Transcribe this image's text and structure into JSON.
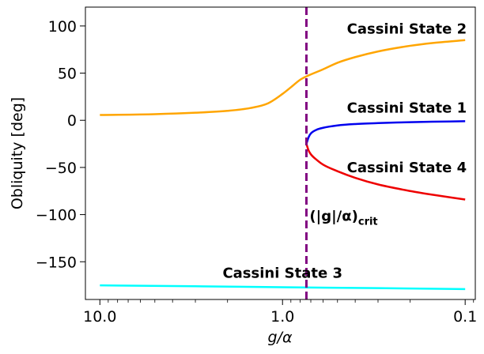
{
  "chart_data": {
    "type": "line",
    "title": "",
    "xlabel": "g/α",
    "ylabel": "Obliquity [deg]",
    "x_scale": "log",
    "x_reversed": true,
    "xlim": [
      12.0,
      0.088
    ],
    "ylim": [
      -190,
      120
    ],
    "x_ticks": [
      {
        "value": 10.0,
        "label": "10.0"
      },
      {
        "value": 1.0,
        "label": "1.0"
      },
      {
        "value": 0.1,
        "label": "0.1"
      }
    ],
    "y_ticks": [
      {
        "value": 100,
        "label": "100"
      },
      {
        "value": 50,
        "label": "50"
      },
      {
        "value": 0,
        "label": "0"
      },
      {
        "value": -50,
        "label": "−50"
      },
      {
        "value": -100,
        "label": "−100"
      },
      {
        "value": -150,
        "label": "−150"
      }
    ],
    "grid": false,
    "series": [
      {
        "color": "#FFA500",
        "x": [
          10,
          5,
          3,
          2,
          1.5,
          1.2,
          1.0,
          0.9,
          0.8,
          0.75,
          0.6,
          0.5,
          0.4,
          0.3,
          0.2,
          0.15,
          0.1
        ],
        "y": [
          5.6,
          6.5,
          8,
          10,
          13,
          18,
          28,
          35,
          43,
          46,
          54,
          61,
          67,
          73,
          79,
          82,
          85
        ]
      },
      {
        "color": "#0000EE",
        "x": [
          0.74,
          0.72,
          0.7,
          0.65,
          0.6,
          0.5,
          0.4,
          0.3,
          0.2,
          0.15,
          0.1
        ],
        "y": [
          -25,
          -18,
          -14,
          -10,
          -8,
          -5.5,
          -4,
          -3,
          -2,
          -1.5,
          -1
        ]
      },
      {
        "color": "#EE0000",
        "x": [
          0.74,
          0.72,
          0.7,
          0.65,
          0.6,
          0.5,
          0.4,
          0.3,
          0.2,
          0.15,
          0.1
        ],
        "y": [
          -25,
          -32,
          -36,
          -42,
          -47,
          -54,
          -61,
          -68,
          -75,
          -79,
          -84
        ]
      },
      {
        "color": "#00FFFF",
        "x": [
          10,
          3,
          1.0,
          0.3,
          0.1
        ],
        "y": [
          -175,
          -176,
          -177,
          -178,
          -179
        ]
      }
    ],
    "vline": {
      "x": 0.74,
      "color": "#800080",
      "label_main": "(|g|/α)",
      "label_sub": "crit"
    },
    "annotations": [
      {
        "text": "Cassini State 2",
        "x": 0.1,
        "y": 92
      },
      {
        "text": "Cassini State 1",
        "x": 0.1,
        "y": 8
      },
      {
        "text": "Cassini State 4",
        "x": 0.1,
        "y": -55
      },
      {
        "text": "Cassini State 3",
        "x": 1.0,
        "y": -167
      }
    ]
  }
}
